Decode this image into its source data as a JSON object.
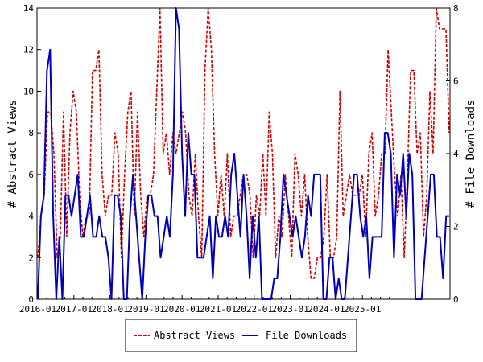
{
  "chart_data": {
    "type": "line",
    "x_tick_labels": [
      "2016-01",
      "2017-01",
      "2018-01",
      "2019-01",
      "2020-01",
      "2021-01",
      "2022-01",
      "2023-01",
      "2024-01",
      "2025-01"
    ],
    "left_axis": {
      "label": "# Abstract Views",
      "ylim": [
        0,
        14
      ],
      "ticks": [
        0,
        2,
        4,
        6,
        8,
        10,
        12,
        14
      ]
    },
    "right_axis": {
      "label": "# File Downloads",
      "ylim": [
        0,
        8
      ],
      "ticks": [
        0,
        2,
        4,
        6,
        8
      ]
    },
    "series": [
      {
        "name": "Abstract Views",
        "axis": "left",
        "color": "#cc0000",
        "style": "dashed",
        "values": [
          2,
          4,
          5,
          9,
          9,
          7,
          2,
          3,
          9,
          3,
          8,
          10,
          9,
          5,
          3,
          4,
          4,
          11,
          11,
          12,
          6,
          4,
          5,
          5,
          8,
          7,
          2,
          6,
          9,
          10,
          4,
          9,
          5,
          3,
          5,
          5,
          6,
          10,
          14,
          7,
          8,
          6,
          8,
          7,
          8,
          9,
          8,
          5,
          4,
          7,
          4,
          2,
          11,
          14,
          12,
          7,
          4,
          6,
          4,
          7,
          3,
          4,
          4,
          5,
          6,
          6,
          5,
          2,
          5,
          4,
          7,
          4,
          9,
          7,
          2,
          4,
          3,
          6,
          4,
          2,
          7,
          6,
          4,
          6,
          3,
          1,
          1,
          2,
          2,
          3,
          6,
          2,
          2,
          3,
          10,
          4,
          5,
          6,
          5,
          5,
          5,
          6,
          3,
          7,
          8,
          4,
          5,
          7,
          7,
          12,
          9,
          6,
          4,
          6,
          2,
          6,
          11,
          11,
          7,
          8,
          3,
          5,
          10,
          7,
          14,
          13,
          13,
          13,
          8
        ]
      },
      {
        "name": "File Downloads",
        "axis": "left",
        "color": "#0000bb",
        "style": "solid",
        "values": [
          0,
          4,
          5,
          11,
          12,
          4,
          0,
          3,
          0,
          5,
          5,
          4,
          5,
          6,
          3,
          3,
          4,
          5,
          3,
          3,
          4,
          3,
          3,
          2,
          0,
          5,
          5,
          4,
          0,
          0,
          4,
          6,
          4,
          2,
          0,
          3,
          5,
          5,
          4,
          4,
          2,
          3,
          4,
          3,
          6,
          14,
          13,
          7,
          4,
          8,
          6,
          6,
          2,
          2,
          2,
          3,
          4,
          1,
          4,
          3,
          3,
          4,
          3,
          6,
          7,
          5,
          3,
          6,
          4,
          1,
          4,
          2,
          4,
          0,
          0,
          0,
          0,
          1,
          1,
          3,
          6,
          5,
          4,
          3,
          4,
          3,
          2,
          3,
          5,
          4,
          6,
          6,
          6,
          0,
          0,
          2,
          2,
          0,
          1,
          0,
          0,
          2,
          4,
          6,
          6,
          4,
          3,
          4,
          1,
          3,
          3,
          3,
          3,
          8,
          8,
          7,
          2,
          6,
          5,
          7,
          4,
          7,
          6,
          0,
          0,
          0,
          2,
          4,
          6,
          6,
          3,
          3,
          1,
          4,
          4
        ]
      }
    ],
    "grid": false,
    "legend_position": "bottom"
  }
}
